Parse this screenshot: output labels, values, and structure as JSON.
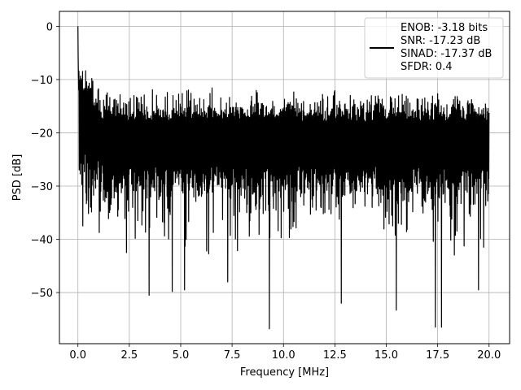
{
  "chart_data": {
    "type": "line",
    "title": "",
    "xlabel": "Frequency [MHz]",
    "ylabel": "PSD [dB]",
    "xlim": [
      -0.9,
      21.0
    ],
    "ylim": [
      -59.6,
      2.8
    ],
    "x_ticks": [
      0.0,
      2.5,
      5.0,
      7.5,
      10.0,
      12.5,
      15.0,
      17.5,
      20.0
    ],
    "x_tick_labels": [
      "0.0",
      "2.5",
      "5.0",
      "7.5",
      "10.0",
      "12.5",
      "15.0",
      "17.5",
      "20.0"
    ],
    "y_ticks": [
      0,
      -10,
      -20,
      -30,
      -40,
      -50
    ],
    "y_tick_labels": [
      "0",
      "−10",
      "−20",
      "−30",
      "−40",
      "−50"
    ],
    "grid": true,
    "legend_placement": "top-right",
    "line_color": "#000000",
    "series": [
      {
        "legend_lines": [
          "ENOB: -3.18 bits",
          "SNR: -17.23 dB",
          "SINAD: -17.37 dB",
          "SFDR: 0.4"
        ],
        "x_range": [
          0.0,
          20.0
        ],
        "peak": {
          "x": 0.0,
          "y": 0.0
        },
        "noise_floor_mean": -22,
        "noise_upper_envelope": -13,
        "notable_dips": [
          {
            "x": 0.25,
            "y": -37.5
          },
          {
            "x": 2.35,
            "y": -42.5
          },
          {
            "x": 3.45,
            "y": -50.5
          },
          {
            "x": 4.6,
            "y": -49.8
          },
          {
            "x": 5.2,
            "y": -49.5
          },
          {
            "x": 7.3,
            "y": -48.0
          },
          {
            "x": 9.3,
            "y": -56.8
          },
          {
            "x": 12.8,
            "y": -52.0
          },
          {
            "x": 15.5,
            "y": -53.3
          },
          {
            "x": 17.4,
            "y": -56.5
          },
          {
            "x": 17.7,
            "y": -56.5
          },
          {
            "x": 19.5,
            "y": -49.5
          }
        ]
      }
    ]
  }
}
